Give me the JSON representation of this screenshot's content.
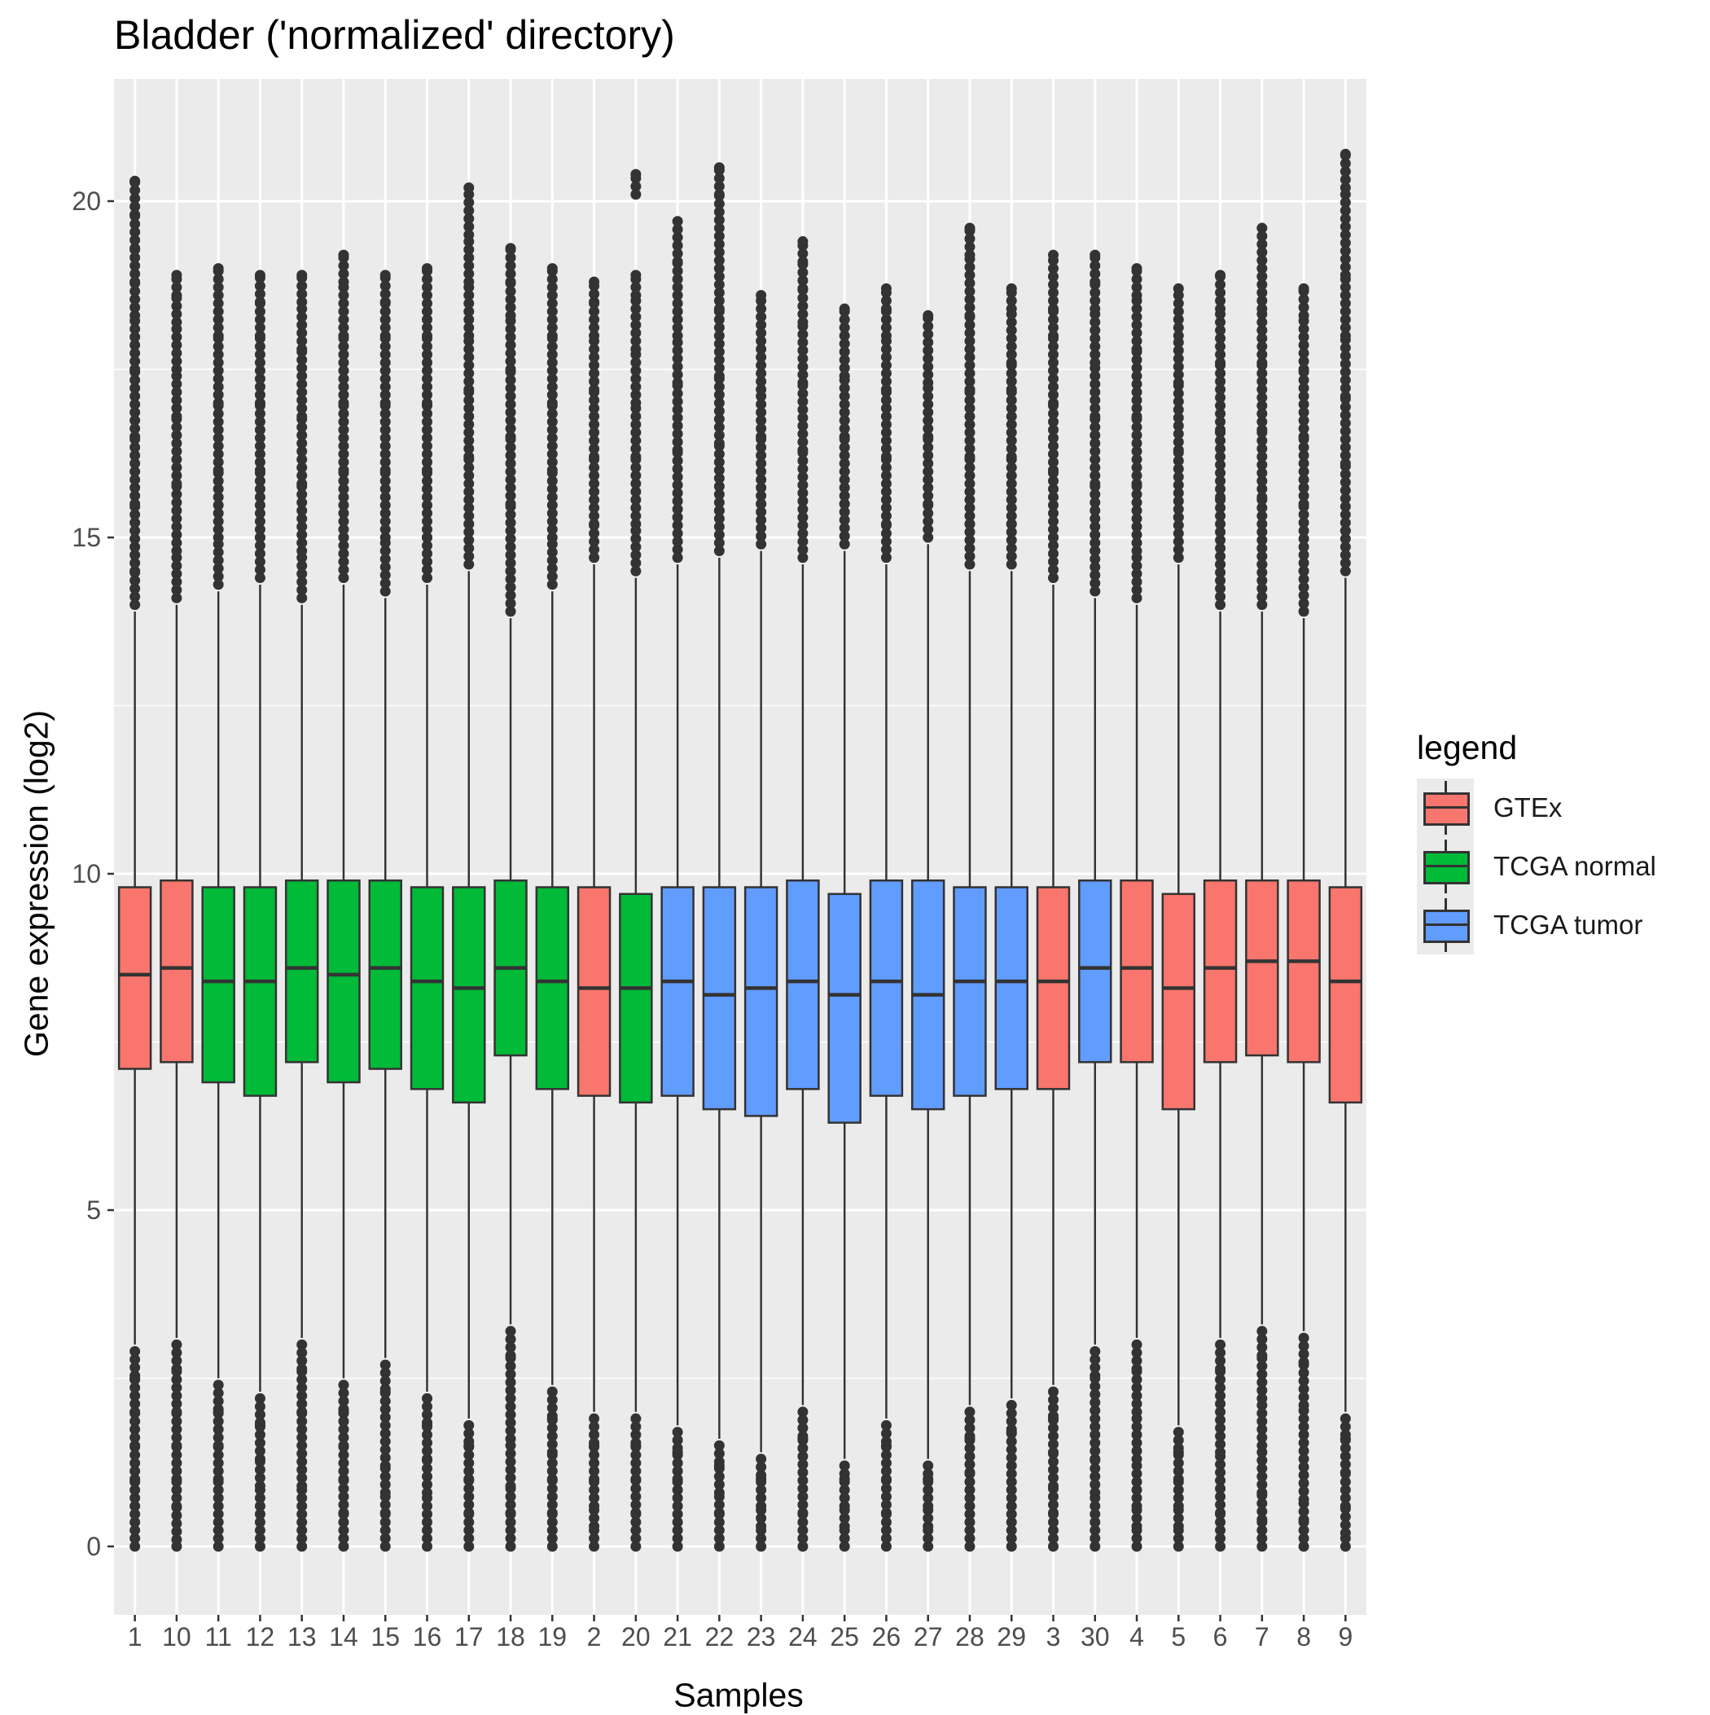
{
  "chart_data": {
    "type": "box",
    "title": "Bladder ('normalized' directory)",
    "xlabel": "Samples",
    "ylabel": "Gene expression (log2)",
    "ylim": [
      -1,
      22
    ],
    "yticks": [
      0,
      5,
      10,
      15,
      20
    ],
    "grid": true,
    "legend": {
      "title": "legend",
      "position": "right",
      "entries": [
        {
          "name": "GTEx",
          "color": "#F8766D"
        },
        {
          "name": "TCGA normal",
          "color": "#00BA38"
        },
        {
          "name": "TCGA tumor",
          "color": "#619CFF"
        }
      ]
    },
    "categories": [
      "1",
      "10",
      "11",
      "12",
      "13",
      "14",
      "15",
      "16",
      "17",
      "18",
      "19",
      "2",
      "20",
      "21",
      "22",
      "23",
      "24",
      "25",
      "26",
      "27",
      "28",
      "29",
      "3",
      "30",
      "4",
      "5",
      "6",
      "7",
      "8",
      "9"
    ],
    "boxes": [
      {
        "sample": "1",
        "group": "GTEx",
        "q1": 7.1,
        "median": 8.5,
        "q3": 9.8,
        "whisker_low": 3.0,
        "whisker_high": 13.9,
        "outliers_low": [
          2.5,
          2.0,
          1.5,
          1.0,
          0.6,
          0.0
        ],
        "outliers_high": [
          14.5,
          15.5,
          16.5,
          17.5,
          18.3,
          18.8,
          19.3,
          19.8,
          20.3
        ]
      },
      {
        "sample": "10",
        "group": "GTEx",
        "q1": 7.2,
        "median": 8.6,
        "q3": 9.9,
        "whisker_low": 3.1,
        "whisker_high": 14.0,
        "outliers_low": [
          2.6,
          2.0,
          1.5,
          1.0,
          0.6,
          0.1,
          0.0
        ],
        "outliers_high": [
          14.8,
          15.8,
          16.8,
          17.5,
          18.2,
          18.6,
          18.9
        ]
      },
      {
        "sample": "11",
        "group": "TCGA normal",
        "q1": 6.9,
        "median": 8.4,
        "q3": 9.8,
        "whisker_low": 2.5,
        "whisker_high": 14.2,
        "outliers_low": [
          2.0,
          1.5,
          1.0,
          0.6,
          0.0
        ],
        "outliers_high": [
          15.0,
          16.0,
          17.0,
          18.0,
          18.6,
          19.0
        ]
      },
      {
        "sample": "12",
        "group": "TCGA normal",
        "q1": 6.7,
        "median": 8.4,
        "q3": 9.8,
        "whisker_low": 2.3,
        "whisker_high": 14.3,
        "outliers_low": [
          1.8,
          1.3,
          0.9,
          0.6,
          0.0
        ],
        "outliers_high": [
          15.0,
          16.0,
          17.0,
          18.0,
          18.5,
          18.9
        ]
      },
      {
        "sample": "13",
        "group": "TCGA normal",
        "q1": 7.2,
        "median": 8.6,
        "q3": 9.9,
        "whisker_low": 3.1,
        "whisker_high": 14.0,
        "outliers_low": [
          2.6,
          2.0,
          1.5,
          0.9,
          0.0
        ],
        "outliers_high": [
          14.8,
          15.8,
          16.8,
          17.8,
          18.5,
          18.9
        ]
      },
      {
        "sample": "14",
        "group": "TCGA normal",
        "q1": 6.9,
        "median": 8.5,
        "q3": 9.9,
        "whisker_low": 2.5,
        "whisker_high": 14.3,
        "outliers_low": [
          2.0,
          1.5,
          1.0,
          0.5,
          0.0
        ],
        "outliers_high": [
          15.0,
          16.0,
          17.0,
          18.0,
          18.8,
          19.2
        ]
      },
      {
        "sample": "15",
        "group": "TCGA normal",
        "q1": 7.1,
        "median": 8.6,
        "q3": 9.9,
        "whisker_low": 2.8,
        "whisker_high": 14.1,
        "outliers_low": [
          2.3,
          1.8,
          1.2,
          0.8,
          0.5,
          0.0
        ],
        "outliers_high": [
          15.0,
          16.0,
          17.0,
          18.0,
          18.5,
          18.9
        ]
      },
      {
        "sample": "16",
        "group": "TCGA normal",
        "q1": 6.8,
        "median": 8.4,
        "q3": 9.8,
        "whisker_low": 2.3,
        "whisker_high": 14.3,
        "outliers_low": [
          1.8,
          1.3,
          0.8,
          0.0
        ],
        "outliers_high": [
          15.0,
          16.0,
          17.0,
          18.0,
          18.6,
          19.0
        ]
      },
      {
        "sample": "17",
        "group": "TCGA normal",
        "q1": 6.6,
        "median": 8.3,
        "q3": 9.8,
        "whisker_low": 1.9,
        "whisker_high": 14.5,
        "outliers_low": [
          1.5,
          1.0,
          0.5,
          0.0
        ],
        "outliers_high": [
          15.2,
          16.2,
          17.2,
          18.0,
          18.8,
          19.5,
          20.2
        ]
      },
      {
        "sample": "18",
        "group": "TCGA normal",
        "q1": 7.3,
        "median": 8.6,
        "q3": 9.9,
        "whisker_low": 3.3,
        "whisker_high": 13.8,
        "outliers_low": [
          2.8,
          2.2,
          1.6,
          0.9,
          0.5,
          0.0
        ],
        "outliers_high": [
          14.5,
          15.5,
          16.5,
          17.5,
          18.3,
          18.8,
          19.3
        ]
      },
      {
        "sample": "19",
        "group": "TCGA normal",
        "q1": 6.8,
        "median": 8.4,
        "q3": 9.8,
        "whisker_low": 2.4,
        "whisker_high": 14.2,
        "outliers_low": [
          1.9,
          1.4,
          1.0,
          0.5,
          0.0
        ],
        "outliers_high": [
          15.0,
          16.0,
          17.0,
          18.0,
          18.6,
          19.0
        ]
      },
      {
        "sample": "2",
        "group": "GTEx",
        "q1": 6.7,
        "median": 8.3,
        "q3": 9.8,
        "whisker_low": 2.0,
        "whisker_high": 14.6,
        "outliers_low": [
          1.5,
          1.0,
          0.6,
          0.3,
          0.0
        ],
        "outliers_high": [
          15.2,
          16.2,
          17.2,
          18.0,
          18.5,
          18.8
        ]
      },
      {
        "sample": "20",
        "group": "TCGA normal",
        "q1": 6.6,
        "median": 8.3,
        "q3": 9.7,
        "whisker_low": 2.0,
        "whisker_high": 14.4,
        "outliers_low": [
          1.5,
          1.0,
          0.5,
          0.0
        ],
        "outliers_high": [
          15.2,
          16.2,
          17.0,
          17.8,
          18.6,
          18.9,
          20.1,
          20.4
        ]
      },
      {
        "sample": "21",
        "group": "TCGA tumor",
        "q1": 6.7,
        "median": 8.4,
        "q3": 9.8,
        "whisker_low": 1.8,
        "whisker_high": 14.6,
        "outliers_low": [
          1.4,
          1.0,
          0.6,
          0.0
        ],
        "outliers_high": [
          15.3,
          16.3,
          17.3,
          18.0,
          18.6,
          19.1,
          19.7
        ]
      },
      {
        "sample": "22",
        "group": "TCGA tumor",
        "q1": 6.5,
        "median": 8.2,
        "q3": 9.8,
        "whisker_low": 1.6,
        "whisker_high": 14.7,
        "outliers_low": [
          1.2,
          0.8,
          0.5,
          0.0
        ],
        "outliers_high": [
          15.4,
          16.4,
          17.4,
          18.4,
          19.0,
          19.6,
          20.1,
          20.5
        ]
      },
      {
        "sample": "23",
        "group": "TCGA tumor",
        "q1": 6.4,
        "median": 8.3,
        "q3": 9.8,
        "whisker_low": 1.4,
        "whisker_high": 14.8,
        "outliers_low": [
          1.0,
          0.6,
          0.3,
          0.0
        ],
        "outliers_high": [
          15.5,
          16.5,
          17.2,
          17.8,
          18.6
        ]
      },
      {
        "sample": "24",
        "group": "TCGA tumor",
        "q1": 6.8,
        "median": 8.4,
        "q3": 9.9,
        "whisker_low": 2.1,
        "whisker_high": 14.6,
        "outliers_low": [
          1.6,
          1.1,
          0.5,
          0.0
        ],
        "outliers_high": [
          15.3,
          16.3,
          17.3,
          18.2,
          18.7,
          19.1,
          19.4
        ]
      },
      {
        "sample": "25",
        "group": "TCGA tumor",
        "q1": 6.3,
        "median": 8.2,
        "q3": 9.7,
        "whisker_low": 1.3,
        "whisker_high": 14.8,
        "outliers_low": [
          1.0,
          0.6,
          0.3,
          0.0
        ],
        "outliers_high": [
          15.5,
          16.5,
          17.4,
          18.0,
          18.4
        ]
      },
      {
        "sample": "26",
        "group": "TCGA tumor",
        "q1": 6.7,
        "median": 8.4,
        "q3": 9.9,
        "whisker_low": 1.9,
        "whisker_high": 14.6,
        "outliers_low": [
          1.5,
          1.0,
          0.5,
          0.0
        ],
        "outliers_high": [
          15.2,
          16.2,
          17.2,
          18.0,
          18.4,
          18.7
        ]
      },
      {
        "sample": "27",
        "group": "TCGA tumor",
        "q1": 6.5,
        "median": 8.2,
        "q3": 9.9,
        "whisker_low": 1.3,
        "whisker_high": 14.9,
        "outliers_low": [
          1.0,
          0.6,
          0.3,
          0.0
        ],
        "outliers_high": [
          15.5,
          16.5,
          17.3,
          17.9,
          18.3
        ]
      },
      {
        "sample": "28",
        "group": "TCGA tumor",
        "q1": 6.7,
        "median": 8.4,
        "q3": 9.8,
        "whisker_low": 2.1,
        "whisker_high": 14.5,
        "outliers_low": [
          1.6,
          1.1,
          0.6,
          0.0
        ],
        "outliers_high": [
          15.2,
          16.2,
          17.2,
          17.8,
          18.3,
          19.2,
          19.6
        ]
      },
      {
        "sample": "29",
        "group": "TCGA tumor",
        "q1": 6.8,
        "median": 8.4,
        "q3": 9.8,
        "whisker_low": 2.2,
        "whisker_high": 14.5,
        "outliers_low": [
          1.7,
          1.2,
          0.6,
          0.0
        ],
        "outliers_high": [
          15.2,
          16.2,
          17.2,
          17.6,
          18.4,
          18.7
        ]
      },
      {
        "sample": "3",
        "group": "GTEx",
        "q1": 6.8,
        "median": 8.4,
        "q3": 9.8,
        "whisker_low": 2.4,
        "whisker_high": 14.3,
        "outliers_low": [
          1.9,
          1.4,
          0.9,
          0.5,
          0.0
        ],
        "outliers_high": [
          15.0,
          16.0,
          17.0,
          18.0,
          18.4,
          19.2
        ]
      },
      {
        "sample": "30",
        "group": "TCGA tumor",
        "q1": 7.2,
        "median": 8.6,
        "q3": 9.9,
        "whisker_low": 3.0,
        "whisker_high": 14.1,
        "outliers_low": [
          2.5,
          1.9,
          1.3,
          0.8,
          0.0
        ],
        "outliers_high": [
          14.8,
          15.8,
          16.8,
          17.6,
          18.4,
          18.8,
          19.2
        ]
      },
      {
        "sample": "4",
        "group": "GTEx",
        "q1": 7.2,
        "median": 8.6,
        "q3": 9.9,
        "whisker_low": 3.1,
        "whisker_high": 14.0,
        "outliers_low": [
          2.6,
          2.0,
          1.3,
          0.6,
          0.3,
          0.0
        ],
        "outliers_high": [
          14.8,
          15.8,
          16.8,
          17.8,
          18.6,
          19.0
        ]
      },
      {
        "sample": "5",
        "group": "GTEx",
        "q1": 6.5,
        "median": 8.3,
        "q3": 9.7,
        "whisker_low": 1.8,
        "whisker_high": 14.6,
        "outliers_low": [
          1.4,
          1.0,
          0.6,
          0.3,
          0.0
        ],
        "outliers_high": [
          15.3,
          16.3,
          17.3,
          18.0,
          18.7
        ]
      },
      {
        "sample": "6",
        "group": "GTEx",
        "q1": 7.2,
        "median": 8.6,
        "q3": 9.9,
        "whisker_low": 3.1,
        "whisker_high": 13.9,
        "outliers_low": [
          2.6,
          2.0,
          1.4,
          0.5,
          0.0
        ],
        "outliers_high": [
          14.6,
          15.6,
          16.6,
          17.6,
          18.4,
          18.9
        ]
      },
      {
        "sample": "7",
        "group": "GTEx",
        "q1": 7.3,
        "median": 8.7,
        "q3": 9.9,
        "whisker_low": 3.3,
        "whisker_high": 13.9,
        "outliers_low": [
          2.8,
          2.2,
          1.5,
          0.8,
          0.4,
          0.0
        ],
        "outliers_high": [
          14.6,
          15.6,
          16.6,
          17.6,
          18.4,
          19.0,
          19.6
        ]
      },
      {
        "sample": "8",
        "group": "GTEx",
        "q1": 7.2,
        "median": 8.7,
        "q3": 9.9,
        "whisker_low": 3.2,
        "whisker_high": 13.8,
        "outliers_low": [
          2.7,
          2.1,
          1.3,
          0.7,
          0.4,
          0.0
        ],
        "outliers_high": [
          14.5,
          15.5,
          16.5,
          17.5,
          18.3,
          18.7
        ]
      },
      {
        "sample": "9",
        "group": "GTEx",
        "q1": 6.6,
        "median": 8.4,
        "q3": 9.8,
        "whisker_low": 2.0,
        "whisker_high": 14.4,
        "outliers_low": [
          1.6,
          1.1,
          0.6,
          0.2,
          0.0
        ],
        "outliers_high": [
          15.1,
          16.1,
          17.1,
          18.0,
          18.9,
          19.5,
          20.2,
          20.7
        ]
      }
    ]
  }
}
